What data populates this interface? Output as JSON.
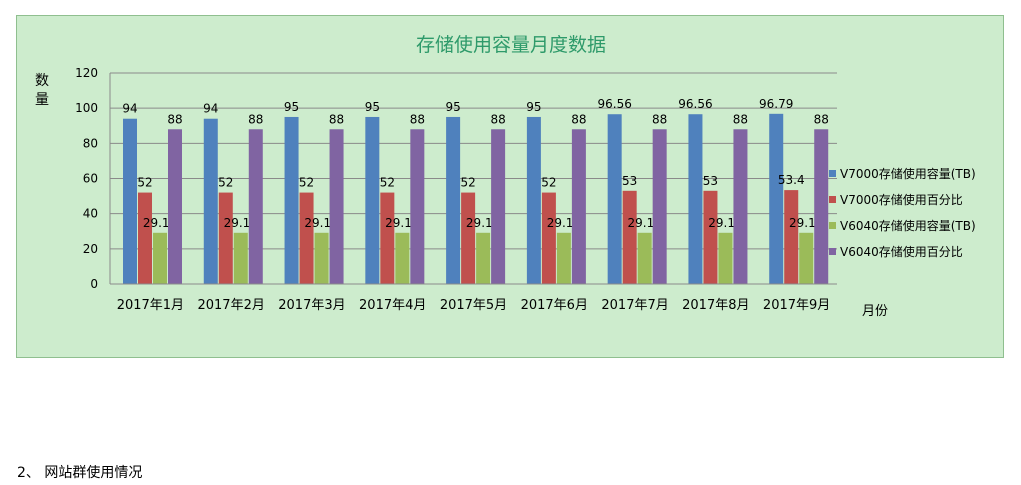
{
  "chart_data": {
    "type": "bar",
    "title": "存储使用容量月度数据",
    "ylabel": "数量",
    "xlabel": "月份",
    "ylim": [
      0,
      120
    ],
    "yticks": [
      0,
      20,
      40,
      60,
      80,
      100,
      120
    ],
    "grid": true,
    "legend_position": "right",
    "categories": [
      "2017年1月",
      "2017年2月",
      "2017年3月",
      "2017年4月",
      "2017年5月",
      "2017年6月",
      "2017年7月",
      "2017年8月",
      "2017年9月"
    ],
    "series": [
      {
        "name": "V7000存储使用容量(TB)",
        "color": "#4f81bd",
        "values": [
          94,
          94,
          95,
          95,
          95,
          95,
          96.56,
          96.56,
          96.79
        ]
      },
      {
        "name": "V7000存储使用百分比",
        "color": "#c0504d",
        "values": [
          52,
          52,
          52,
          52,
          52,
          52,
          53,
          53,
          53.4
        ]
      },
      {
        "name": "V6040存储使用容量(TB)",
        "color": "#9bbb59",
        "values": [
          29.12,
          29.12,
          29.12,
          29.12,
          29.12,
          29.12,
          29.12,
          29.12,
          29.12
        ]
      },
      {
        "name": "V6040存储使用百分比",
        "color": "#8064a2",
        "values": [
          88,
          88,
          88,
          88,
          88,
          88,
          88,
          88,
          88
        ]
      }
    ]
  },
  "footer": {
    "text": "2、 网站群使用情况"
  }
}
